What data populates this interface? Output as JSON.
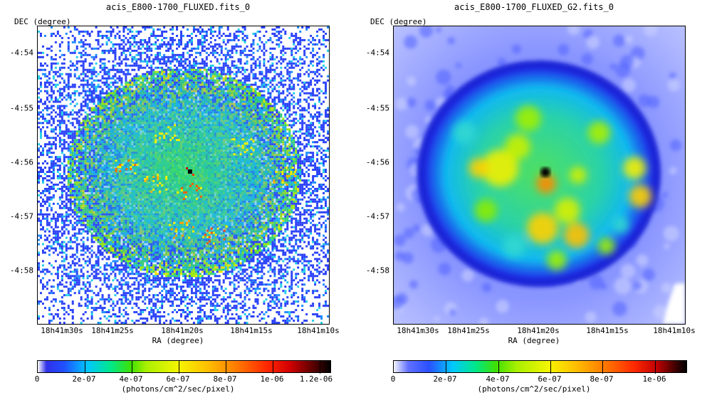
{
  "panels": [
    {
      "title": "acis_E800-1700_FLUXED.fits_0",
      "ylabel": "DEC (degree)",
      "xlabel": "RA (degree)",
      "y_ticks": [
        "-4:54",
        "-4:55",
        "-4:56",
        "-4:57",
        "-4:58"
      ],
      "x_ticks": [
        "18h41m30s",
        "18h41m25s",
        "18h41m20s",
        "18h41m15s",
        "18h41m10s"
      ],
      "colorbar": {
        "labels": [
          "0",
          "2e-07",
          "4e-07",
          "6e-07",
          "8e-07",
          "1e-06",
          "1.2e-06"
        ],
        "units": "(photons/cm^2/sec/pixel)"
      }
    },
    {
      "title": "acis_E800-1700_FLUXED_G2.fits_0",
      "ylabel": "DEC (degree)",
      "xlabel": "RA (degree)",
      "y_ticks": [
        "-4:54",
        "-4:55",
        "-4:56",
        "-4:57",
        "-4:58"
      ],
      "x_ticks": [
        "18h41m30s",
        "18h41m25s",
        "18h41m20s",
        "18h41m15s",
        "18h41m10s"
      ],
      "colorbar": {
        "labels": [
          "0",
          "2e-07",
          "4e-07",
          "6e-07",
          "8e-07",
          "1e-06"
        ],
        "units": "(photons/cm^2/sec/pixel)"
      }
    }
  ]
}
